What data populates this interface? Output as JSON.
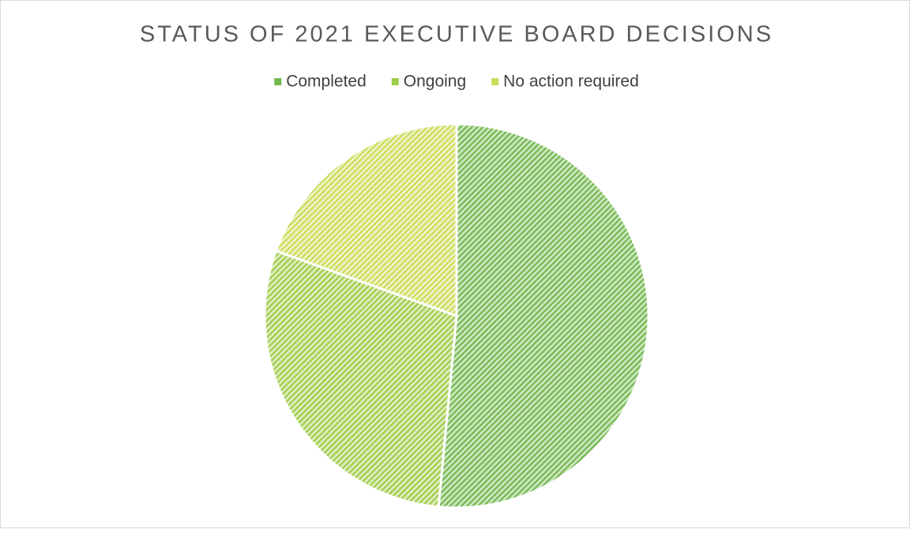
{
  "chart_data": {
    "type": "pie",
    "title": "STATUS OF 2021 EXECUTIVE BOARD DECISIONS",
    "categories": [
      "Completed",
      "Ongoing",
      "No action required"
    ],
    "values": [
      51.5,
      29,
      19.5
    ],
    "colors": [
      "#72b84e",
      "#9fcc48",
      "#cbdc58"
    ],
    "legend": "top"
  }
}
